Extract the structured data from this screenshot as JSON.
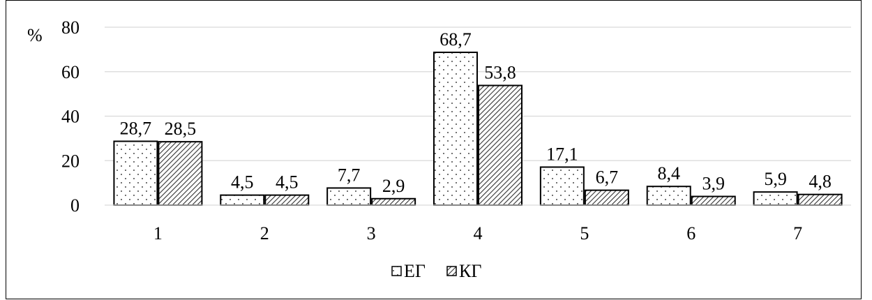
{
  "chart_data": {
    "type": "bar",
    "y_unit_label": "%",
    "categories": [
      "1",
      "2",
      "3",
      "4",
      "5",
      "6",
      "7"
    ],
    "series": [
      {
        "name": "ЕГ",
        "values": [
          28.7,
          4.5,
          7.7,
          68.7,
          17.1,
          8.4,
          5.9
        ],
        "labels": [
          "28,7",
          "4,5",
          "7,7",
          "68,7",
          "17,1",
          "8,4",
          "5,9"
        ],
        "pattern": "dots"
      },
      {
        "name": "КГ",
        "values": [
          28.5,
          4.5,
          2.9,
          53.8,
          6.7,
          3.9,
          4.8
        ],
        "labels": [
          "28,5",
          "4,5",
          "2,9",
          "53,8",
          "6,7",
          "3,9",
          "4,8"
        ],
        "pattern": "diagonal-hatch"
      }
    ],
    "yticks": [
      "0",
      "20",
      "40",
      "60",
      "80"
    ],
    "ylim": [
      0,
      80
    ],
    "grid": true,
    "legend_position": "bottom-center"
  }
}
